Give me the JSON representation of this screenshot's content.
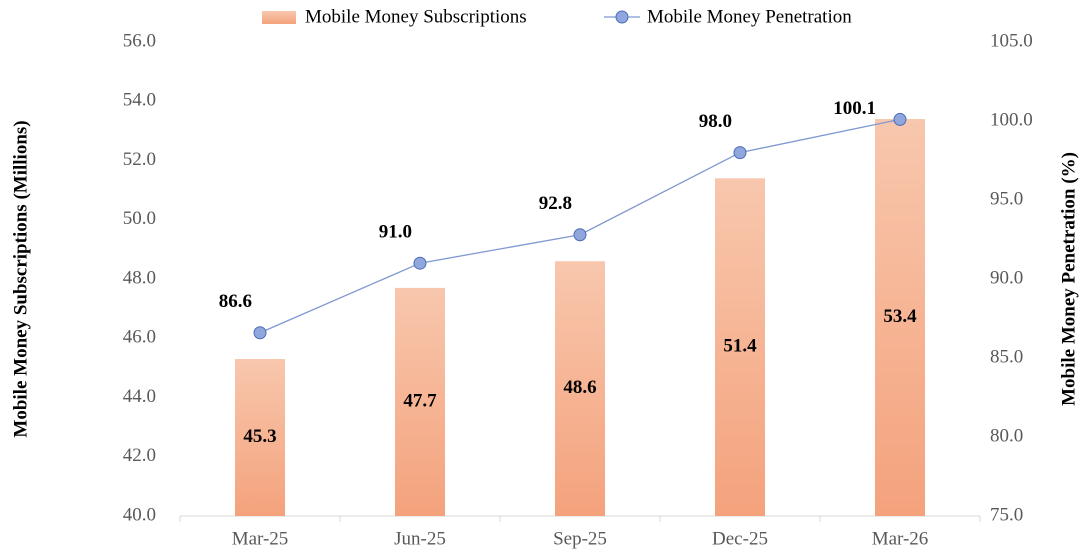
{
  "chart_data": {
    "type": "bar",
    "categories": [
      "Mar-25",
      "Jun-25",
      "Sep-25",
      "Dec-25",
      "Mar-26"
    ],
    "series": [
      {
        "name": "Mobile Money Subscriptions",
        "type": "bar",
        "axis": "y",
        "color": "#f4a47f",
        "values": [
          45.3,
          47.7,
          48.6,
          51.4,
          53.4
        ],
        "value_labels": [
          "45.3",
          "47.7",
          "48.6",
          "51.4",
          "53.4"
        ]
      },
      {
        "name": "Mobile Money Penetration",
        "type": "line",
        "axis": "y2",
        "color": "#7f98d2",
        "values": [
          86.6,
          91.0,
          92.8,
          98.0,
          100.1
        ],
        "value_labels": [
          "86.6",
          "91.0",
          "92.8",
          "98.0",
          "100.1"
        ]
      }
    ],
    "ylabel": "Mobile Money Subscriptions (Millions)",
    "y2label": "Mobile Money Penetration (%)",
    "ylim": [
      40,
      56
    ],
    "yticks": [
      {
        "value": 40,
        "label": "40.0"
      },
      {
        "value": 42,
        "label": "42.0"
      },
      {
        "value": 44,
        "label": "44.0"
      },
      {
        "value": 46,
        "label": "46.0"
      },
      {
        "value": 48,
        "label": "48.0"
      },
      {
        "value": 50,
        "label": "50.0"
      },
      {
        "value": 52,
        "label": "52.0"
      },
      {
        "value": 54,
        "label": "54.0"
      },
      {
        "value": 56,
        "label": "56.0"
      }
    ],
    "y2lim": [
      75,
      105
    ],
    "y2ticks": [
      {
        "value": 75,
        "label": "75.0"
      },
      {
        "value": 80,
        "label": "80.0"
      },
      {
        "value": 85,
        "label": "85.0"
      },
      {
        "value": 90,
        "label": "90.0"
      },
      {
        "value": 95,
        "label": "95.0"
      },
      {
        "value": 100,
        "label": "100.0"
      },
      {
        "value": 105,
        "label": "105.0"
      }
    ],
    "grid": false,
    "legend": "top"
  }
}
